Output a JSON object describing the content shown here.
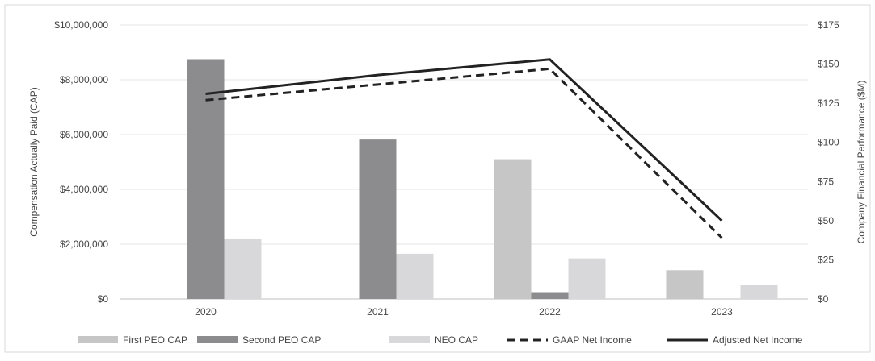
{
  "chart_data": {
    "type": "bar",
    "categories": [
      "2020",
      "2021",
      "2022",
      "2023"
    ],
    "series": [
      {
        "name": "First PEO CAP",
        "kind": "bar",
        "axis": "left",
        "color": "#c6c6c6",
        "values": [
          null,
          null,
          5100000,
          1050000
        ]
      },
      {
        "name": "Second PEO CAP",
        "kind": "bar",
        "axis": "left",
        "color": "#8c8c8e",
        "values": [
          8750000,
          5820000,
          250000,
          null
        ]
      },
      {
        "name": "NEO CAP",
        "kind": "bar",
        "axis": "left",
        "color": "#d8d8da",
        "values": [
          2200000,
          1650000,
          1480000,
          500000
        ]
      },
      {
        "name": "GAAP Net Income",
        "kind": "line",
        "axis": "right",
        "style": "dashed",
        "color": "#222222",
        "values": [
          127,
          137,
          147,
          39
        ]
      },
      {
        "name": "Adjusted Net Income",
        "kind": "line",
        "axis": "right",
        "style": "solid",
        "color": "#222222",
        "values": [
          131,
          143,
          153,
          50
        ]
      }
    ],
    "y_left": {
      "label": "Compensation Actually Paid (CAP)",
      "range": [
        0,
        10000000
      ],
      "ticks": [
        "$0",
        "$2,000,000",
        "$4,000,000",
        "$6,000,000",
        "$8,000,000",
        "$10,000,000"
      ]
    },
    "y_right": {
      "label": "Company Financial Performance ($M)",
      "range": [
        0,
        175
      ],
      "ticks": [
        "$0",
        "$25",
        "$50",
        "$75",
        "$100",
        "$125",
        "$150",
        "$175"
      ]
    },
    "grid": true,
    "legend": "bottom"
  }
}
